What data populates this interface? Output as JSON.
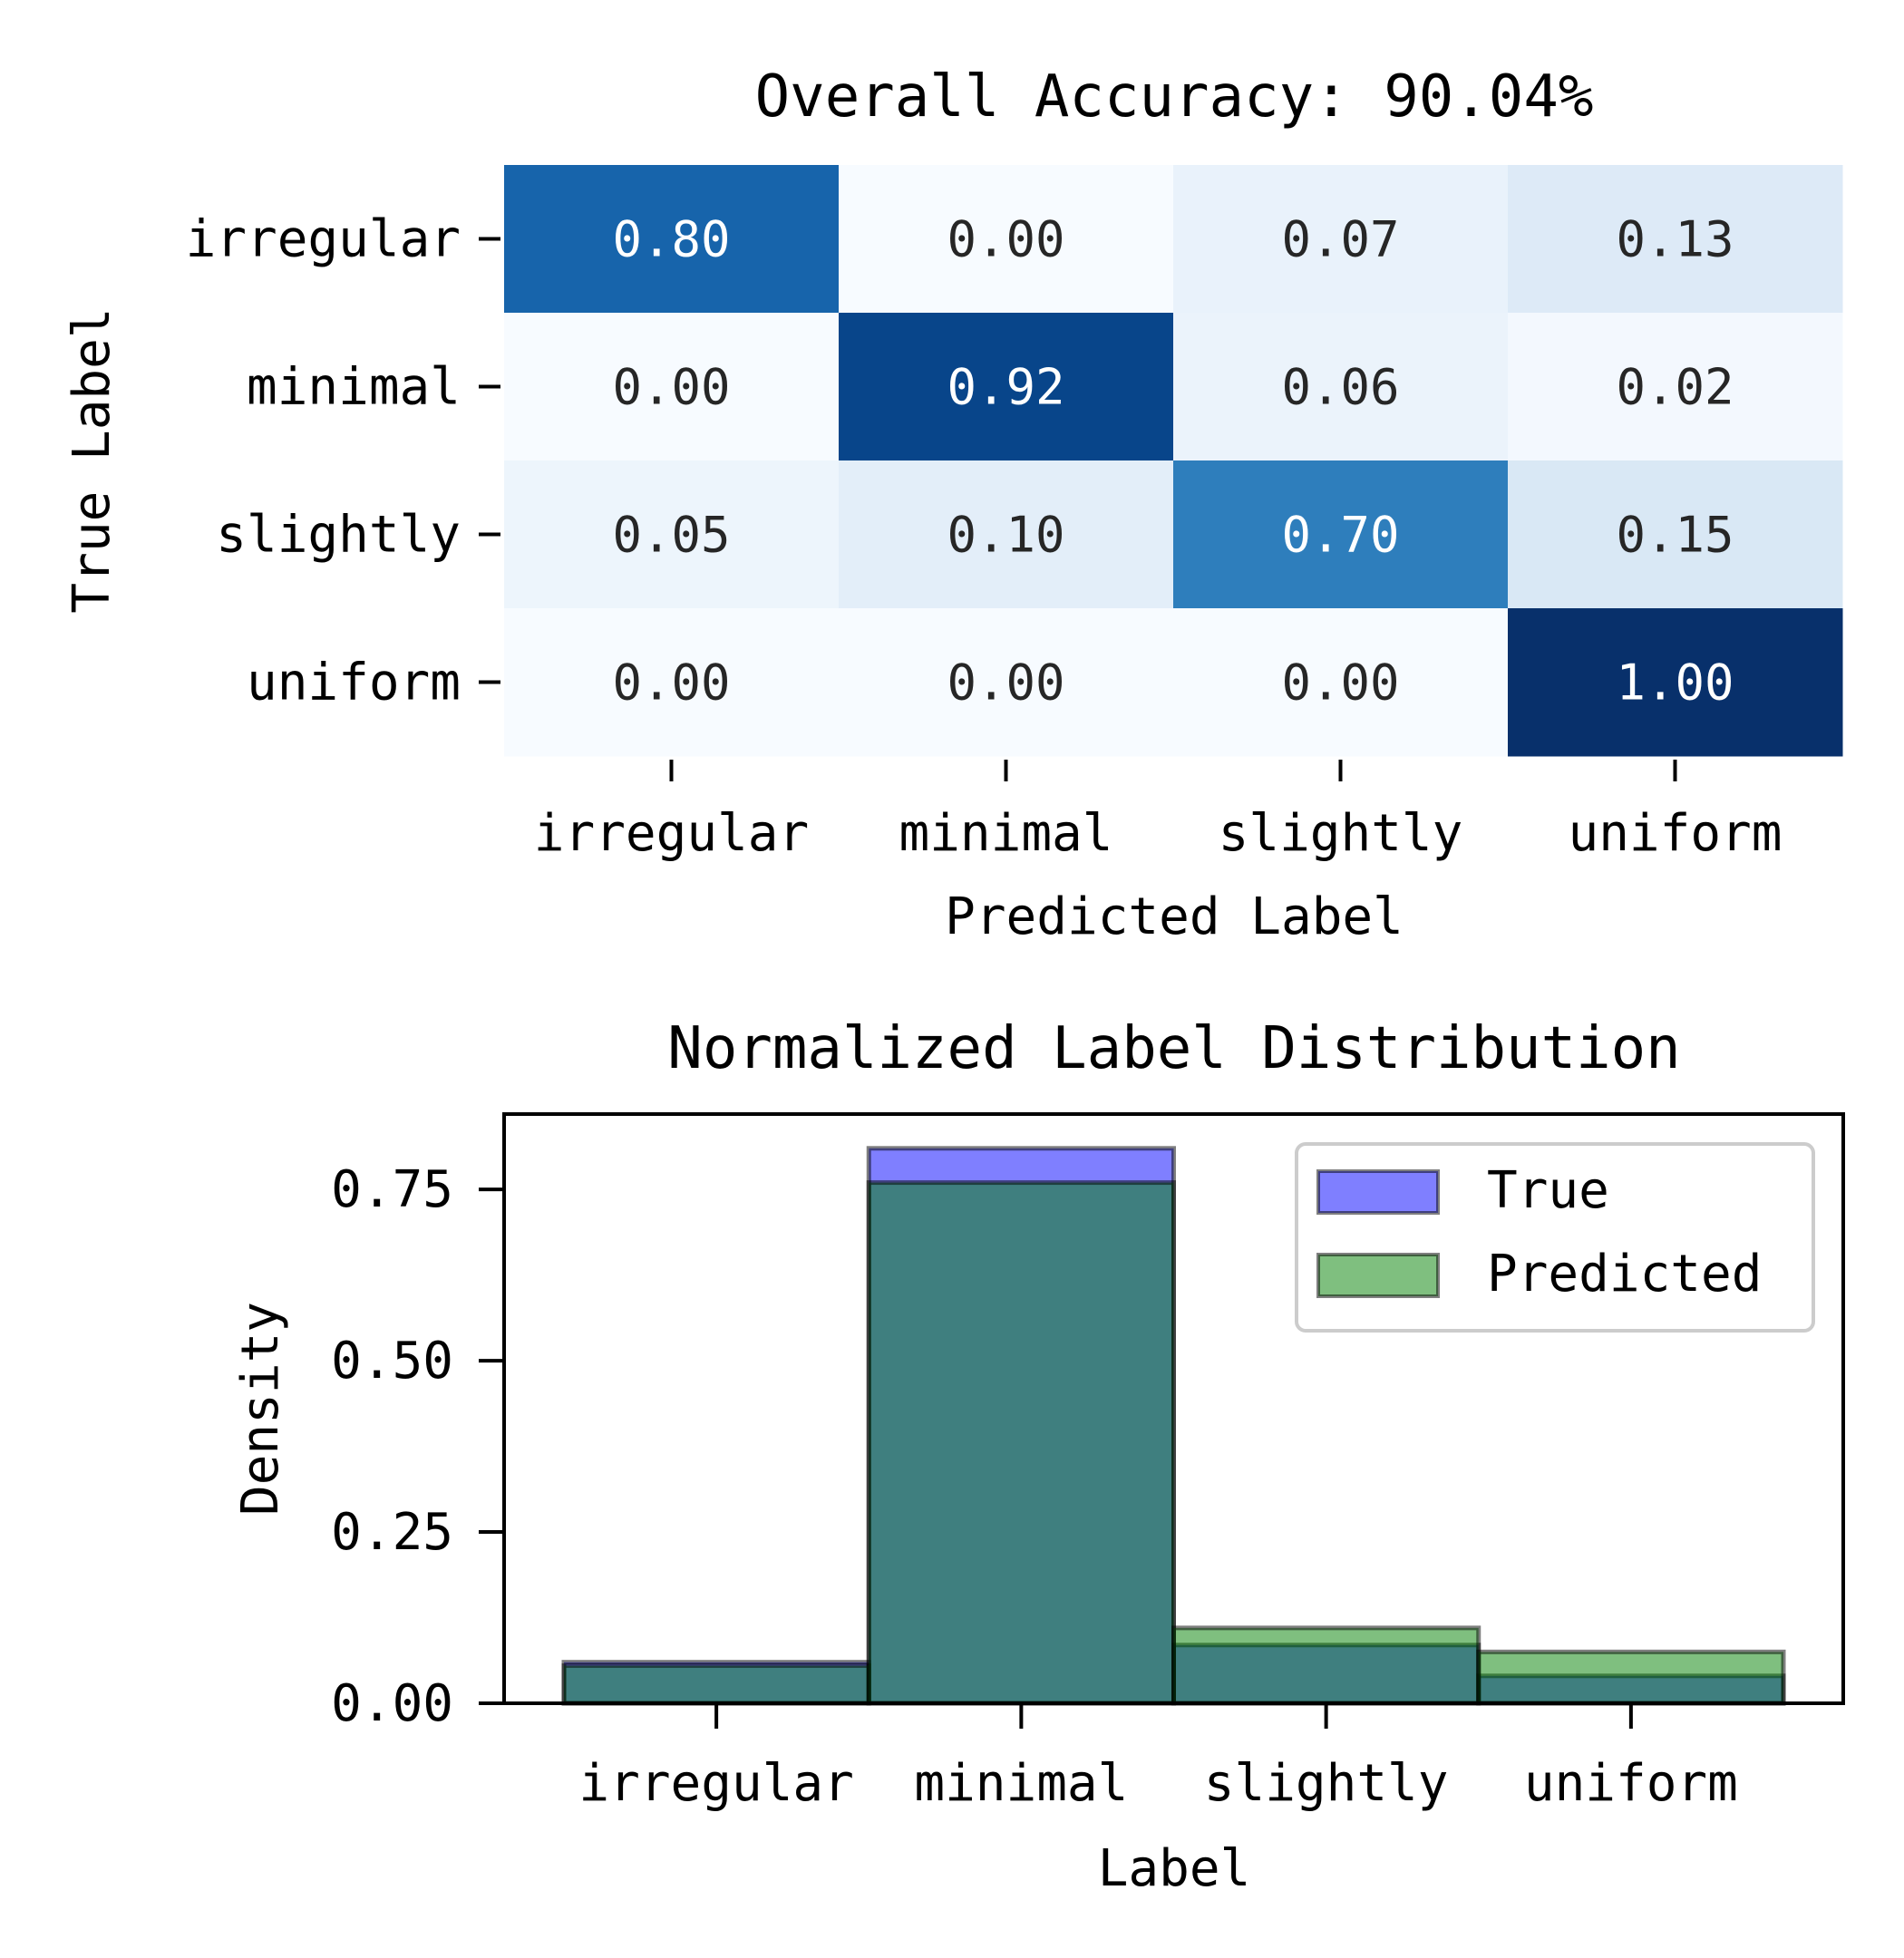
{
  "chart_data": [
    {
      "type": "heatmap",
      "title": "Overall Accuracy: 90.04%",
      "xlabel": "Predicted Label",
      "ylabel": "True Label",
      "x_categories": [
        "irregular",
        "minimal",
        "slightly",
        "uniform"
      ],
      "y_categories": [
        "irregular",
        "minimal",
        "slightly",
        "uniform"
      ],
      "values": [
        [
          0.8,
          0.0,
          0.07,
          0.13
        ],
        [
          0.0,
          0.92,
          0.06,
          0.02
        ],
        [
          0.05,
          0.1,
          0.7,
          0.15
        ],
        [
          0.0,
          0.0,
          0.0,
          1.0
        ]
      ],
      "cell_text": [
        [
          "0.80",
          "0.00",
          "0.07",
          "0.13"
        ],
        [
          "0.00",
          "0.92",
          "0.06",
          "0.02"
        ],
        [
          "0.05",
          "0.10",
          "0.70",
          "0.15"
        ],
        [
          "0.00",
          "0.00",
          "0.00",
          "1.00"
        ]
      ],
      "colormap": "Blues",
      "colors": {
        "low": "#f7fbff",
        "high": "#08306b"
      },
      "colorbar": false
    },
    {
      "type": "bar",
      "title": "Normalized Label Distribution",
      "xlabel": "Label",
      "ylabel": "Density",
      "categories": [
        "irregular",
        "minimal",
        "slightly",
        "uniform"
      ],
      "ylim": [
        0,
        0.86
      ],
      "yticks": [
        0.0,
        0.25,
        0.5,
        0.75
      ],
      "ytick_labels": [
        "0.00",
        "0.25",
        "0.50",
        "0.75"
      ],
      "grid": false,
      "legend_position": "top-right",
      "series": [
        {
          "name": "True",
          "values": [
            0.06,
            0.81,
            0.085,
            0.04
          ],
          "color": "#0000ff"
        },
        {
          "name": "Predicted",
          "values": [
            0.055,
            0.76,
            0.11,
            0.075
          ],
          "color": "#008000"
        }
      ]
    }
  ]
}
